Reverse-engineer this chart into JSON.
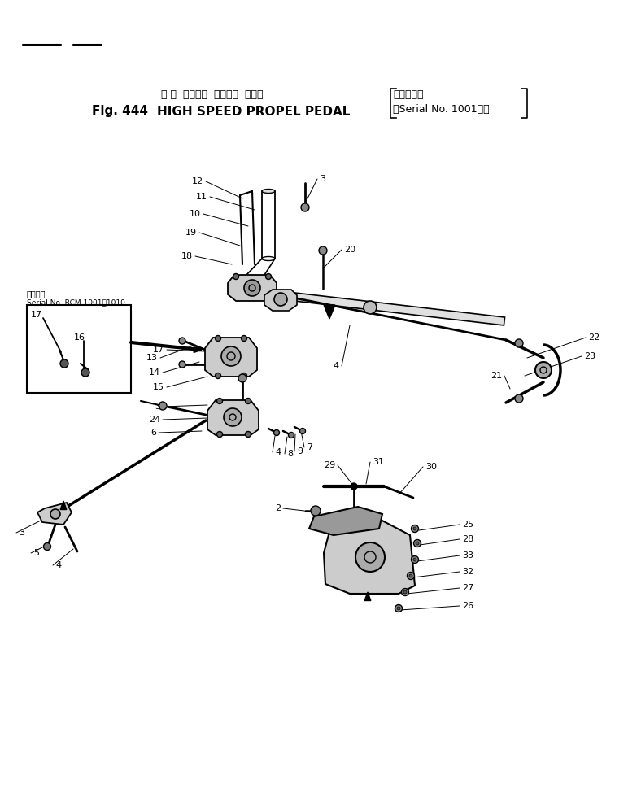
{
  "bg_color": "#ffffff",
  "fig_width": 7.72,
  "fig_height": 9.91,
  "dpi": 100,
  "title_jp": "ハ イ  スピード  プロペル  ペダル",
  "title_serial_jp": "（適用号機",
  "title_serial_en": "Serial No. 1001～）",
  "title_fig": "Fig. 444",
  "title_en": "HIGH SPEED PROPEL PEDAL",
  "inset_applicable_jp": "適用号機",
  "inset_serial": "Serial No. BCM 1001 ～1010"
}
